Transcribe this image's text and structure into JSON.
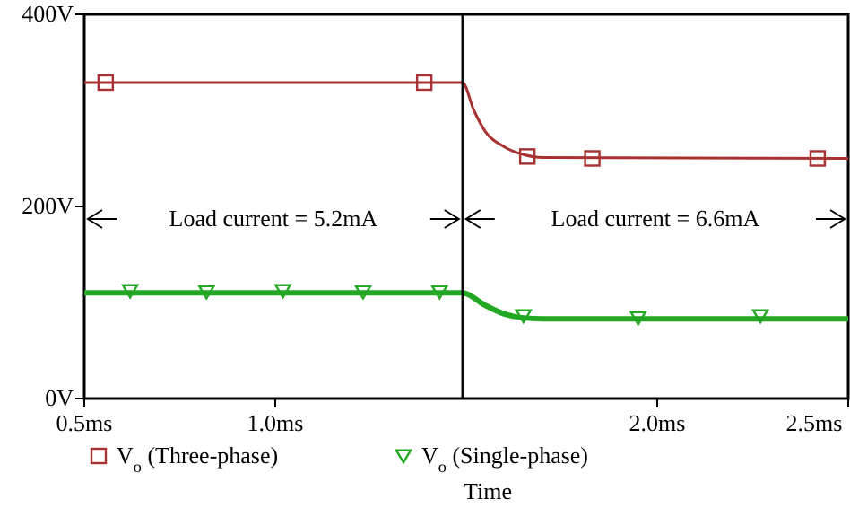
{
  "chart_data": {
    "type": "line",
    "xlabel": "Time",
    "xlim": [
      0.5,
      2.5
    ],
    "xticks": [
      {
        "value": 0.5,
        "label": "0.5ms"
      },
      {
        "value": 1.0,
        "label": "1.0ms"
      },
      {
        "value": 2.0,
        "label": "2.0ms"
      },
      {
        "value": 2.5,
        "label": "2.5ms"
      }
    ],
    "ylim": [
      0,
      400
    ],
    "yticks": [
      {
        "value": 0,
        "label": "0V"
      },
      {
        "value": 200,
        "label": "200V"
      },
      {
        "value": 400,
        "label": "400V"
      }
    ],
    "grid": false,
    "legend": "bottom",
    "series": [
      {
        "color": "#a83232",
        "x": [
          0.5,
          1.49,
          1.52,
          1.55,
          1.6,
          1.65,
          1.7,
          2.5
        ],
        "values": [
          329,
          329,
          300,
          278,
          262,
          254,
          251,
          250
        ],
        "line_style": "solid"
      },
      {
        "color": "#22a822",
        "x": [
          0.5,
          1.49,
          1.55,
          1.6,
          1.65,
          1.7,
          2.5
        ],
        "values": [
          110,
          110,
          97,
          88,
          84,
          83,
          83
        ],
        "line_style": "solid"
      },
      {
        "type": "scatter",
        "name": "V$_{o}$ (Three-phase)",
        "color": "#a83232",
        "marker": "square",
        "x": [
          0.556,
          1.39,
          1.66,
          1.83,
          2.42
        ],
        "values": [
          329,
          329,
          252,
          250,
          250
        ]
      },
      {
        "type": "scatter",
        "name": "V$_{o}$ (Single-phase)",
        "color": "#22a822",
        "marker": "triangle",
        "x": [
          0.62,
          0.82,
          1.02,
          1.23,
          1.43,
          1.65,
          1.95,
          2.27
        ],
        "values": [
          112,
          111,
          112,
          111,
          111,
          86,
          84,
          86
        ]
      }
    ],
    "ref_lines": [
      {
        "axis": "x",
        "value": 1.49,
        "color": "#000000"
      }
    ],
    "annotations": [
      "Load current = 5.2mA",
      "Load current = 6.6mA"
    ]
  }
}
